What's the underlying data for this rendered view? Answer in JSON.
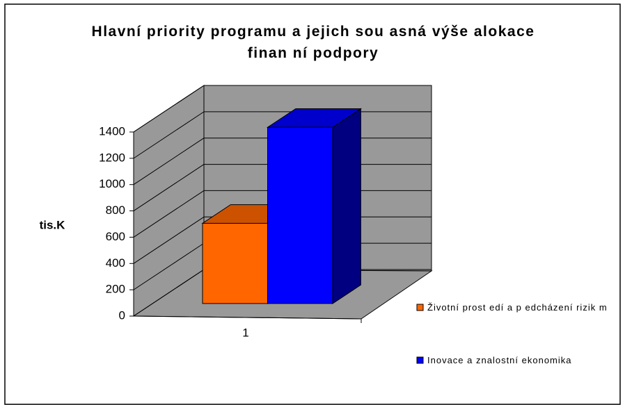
{
  "chart_data": {
    "type": "bar3d",
    "title": "Hlavní priority programu a jejich sou asná výše alokace finan ní podpory",
    "y_label": "tis.K",
    "categories": [
      "1"
    ],
    "series": [
      {
        "name": "Životní prost edí a p edcházení rizik m",
        "color": "#ff6600",
        "values": [
          610
        ]
      },
      {
        "name": "Inovace a znalostní ekonomika",
        "color": "#0000ff",
        "values": [
          1340
        ]
      }
    ],
    "ylim": [
      0,
      1400
    ],
    "yticks": [
      0,
      200,
      400,
      600,
      800,
      1000,
      1200,
      1400
    ],
    "grid": true,
    "legend": "right"
  }
}
